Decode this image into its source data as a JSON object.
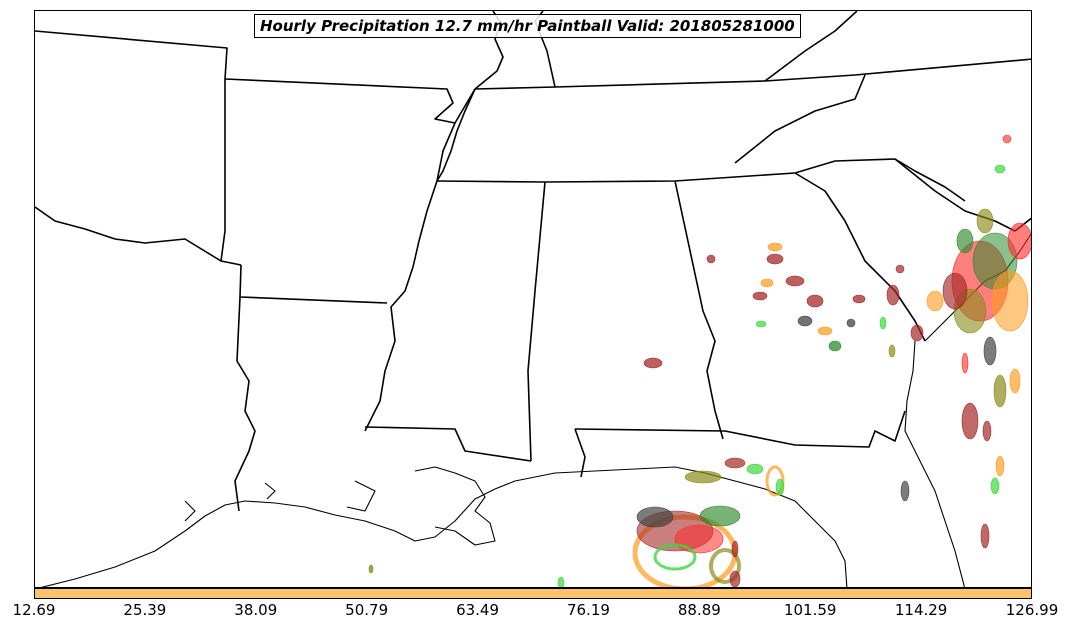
{
  "title": "Hourly Precipitation 12.7 mm/hr Paintball Valid: 201805281000",
  "colorbar": {
    "color": "#fbc36b",
    "ticks": [
      "12.69",
      "25.39",
      "38.09",
      "50.79",
      "63.49",
      "76.19",
      "88.89",
      "101.59",
      "114.29",
      "126.99"
    ]
  },
  "colors": {
    "dark_red": "#a52a2a",
    "red": "#ff2a2a",
    "orange": "#ff9a1a",
    "green": "#2e8b2e",
    "light_green": "#3cd83c",
    "olive": "#8b8b1a",
    "gray": "#444444",
    "border": "#000000"
  }
}
